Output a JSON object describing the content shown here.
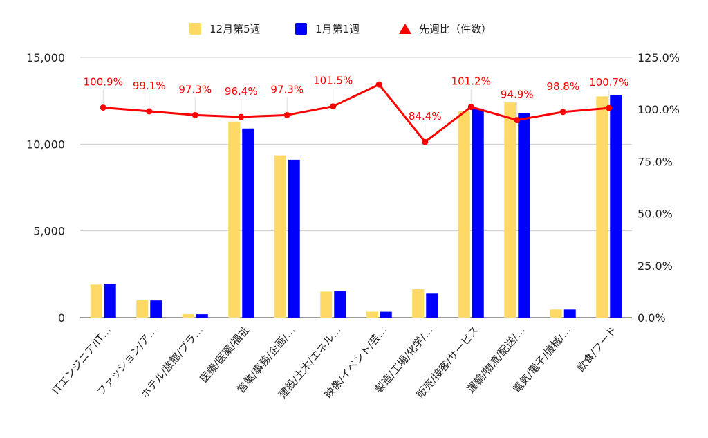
{
  "chart_data": {
    "type": "bar",
    "categories": [
      "ITエンジニア/IT…",
      "ファッション/ア…",
      "ホテル/旅館/ブラ…",
      "医療/医薬/福祉",
      "営業/事務/企画/…",
      "建設/土木/エネル…",
      "映像/イベント/芸…",
      "製造/工場/化学/…",
      "販売/接客/サービス",
      "運輸/物流/配送/…",
      "電気/電子/機械/…",
      "飲食/フード"
    ],
    "series": [
      {
        "name": "12月第5週",
        "kind": "bar",
        "axis": "left",
        "color": "#ffd966",
        "values": [
          1900,
          1000,
          200,
          11300,
          9350,
          1500,
          340,
          1640,
          11900,
          12400,
          470,
          12750
        ]
      },
      {
        "name": "1月第1週",
        "kind": "bar",
        "axis": "left",
        "color": "#0000ff",
        "values": [
          1915,
          990,
          195,
          10900,
          9100,
          1520,
          335,
          1385,
          12050,
          11770,
          465,
          12840
        ]
      },
      {
        "name": "先週比（件数）",
        "kind": "line",
        "axis": "right",
        "color": "#ff0000",
        "values": [
          100.9,
          99.1,
          97.3,
          96.4,
          97.3,
          101.5,
          112.0,
          84.4,
          101.2,
          94.9,
          98.8,
          100.7
        ],
        "labels": [
          "100.9%",
          "99.1%",
          "97.3%",
          "96.4%",
          "97.3%",
          "101.5%",
          "",
          "84.4%",
          "101.2%",
          "94.9%",
          "98.8%",
          "100.7%"
        ]
      }
    ],
    "y_left": {
      "min": 0,
      "max": 15000,
      "ticks": [
        0,
        5000,
        10000,
        15000
      ],
      "tick_labels": [
        "0",
        "5,000",
        "10,000",
        "15,000"
      ]
    },
    "y_right": {
      "min": 0,
      "max": 125,
      "ticks": [
        0,
        25,
        50,
        75,
        100,
        125
      ],
      "tick_labels": [
        "0.0%",
        "25.0%",
        "50.0%",
        "75.0%",
        "100.0%",
        "125.0%"
      ]
    },
    "grid": true,
    "legend_position": "top-center",
    "title": "",
    "xlabel": "",
    "ylabel": ""
  }
}
